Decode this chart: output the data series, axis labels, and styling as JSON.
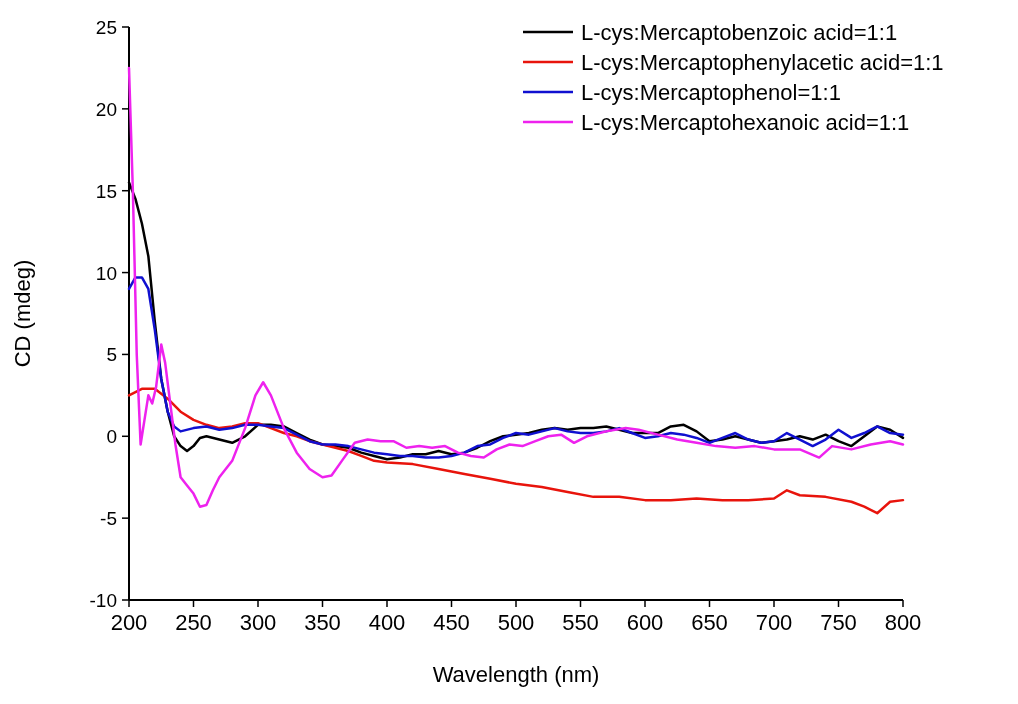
{
  "chart_data": {
    "type": "line",
    "xlabel": "Wavelength (nm)",
    "ylabel": "CD (mdeg)",
    "xlim": [
      200,
      800
    ],
    "ylim": [
      -10,
      25
    ],
    "xticks": [
      200,
      250,
      300,
      350,
      400,
      450,
      500,
      550,
      600,
      650,
      700,
      750,
      800
    ],
    "yticks": [
      -10,
      -5,
      0,
      5,
      10,
      15,
      20,
      25
    ],
    "legend": "top right",
    "grid": false,
    "line_style": "solid",
    "series": [
      {
        "name": "L-cys:Mercaptobenzoic acid=1:1",
        "color": "#000000",
        "x": [
          200,
          205,
          210,
          215,
          220,
          225,
          230,
          235,
          240,
          245,
          250,
          255,
          260,
          270,
          280,
          290,
          300,
          310,
          320,
          330,
          340,
          350,
          360,
          370,
          380,
          390,
          400,
          410,
          420,
          430,
          440,
          450,
          460,
          470,
          480,
          490,
          500,
          510,
          520,
          530,
          540,
          550,
          560,
          570,
          580,
          590,
          600,
          610,
          620,
          630,
          640,
          650,
          660,
          670,
          680,
          690,
          700,
          710,
          720,
          730,
          740,
          750,
          760,
          770,
          780,
          790,
          800
        ],
        "values": [
          15.5,
          14.5,
          13,
          11,
          7,
          3.5,
          1.5,
          0,
          -0.6,
          -0.9,
          -0.6,
          -0.1,
          0,
          -0.2,
          -0.4,
          0,
          0.7,
          0.7,
          0.6,
          0.2,
          -0.2,
          -0.5,
          -0.6,
          -0.7,
          -1,
          -1.2,
          -1.4,
          -1.3,
          -1.1,
          -1.1,
          -0.9,
          -1.1,
          -1,
          -0.7,
          -0.3,
          0,
          0.1,
          0.2,
          0.4,
          0.5,
          0.4,
          0.5,
          0.5,
          0.6,
          0.4,
          0.2,
          0.2,
          0.2,
          0.6,
          0.7,
          0.3,
          -0.3,
          -0.2,
          0,
          -0.2,
          -0.4,
          -0.3,
          -0.2,
          0,
          -0.2,
          0.1,
          -0.3,
          -0.6,
          0,
          0.6,
          0.4,
          -0.1
        ]
      },
      {
        "name": "L-cys:Mercaptophenylacetic acid=1:1",
        "color": "#e8140c",
        "x": [
          200,
          210,
          220,
          230,
          240,
          250,
          260,
          270,
          280,
          290,
          300,
          310,
          320,
          330,
          340,
          350,
          360,
          370,
          380,
          390,
          400,
          420,
          440,
          460,
          480,
          500,
          520,
          540,
          560,
          580,
          600,
          620,
          640,
          660,
          680,
          700,
          710,
          720,
          740,
          760,
          770,
          780,
          790,
          800
        ],
        "values": [
          2.5,
          2.9,
          2.9,
          2.3,
          1.5,
          1,
          0.7,
          0.5,
          0.6,
          0.8,
          0.8,
          0.5,
          0.2,
          0,
          -0.3,
          -0.5,
          -0.7,
          -0.9,
          -1.2,
          -1.5,
          -1.6,
          -1.7,
          -2,
          -2.3,
          -2.6,
          -2.9,
          -3.1,
          -3.4,
          -3.7,
          -3.7,
          -3.9,
          -3.9,
          -3.8,
          -3.9,
          -3.9,
          -3.8,
          -3.3,
          -3.6,
          -3.7,
          -4,
          -4.3,
          -4.7,
          -4,
          -3.9
        ]
      },
      {
        "name": "L-cys:Mercaptophenol=1:1",
        "color": "#1010d0",
        "x": [
          200,
          205,
          210,
          215,
          220,
          225,
          230,
          235,
          240,
          250,
          260,
          270,
          280,
          290,
          300,
          310,
          320,
          330,
          340,
          350,
          360,
          370,
          380,
          390,
          400,
          410,
          420,
          430,
          440,
          450,
          460,
          470,
          480,
          490,
          500,
          510,
          520,
          530,
          540,
          550,
          560,
          570,
          580,
          590,
          600,
          610,
          620,
          630,
          640,
          650,
          660,
          670,
          680,
          690,
          700,
          710,
          720,
          730,
          740,
          750,
          760,
          770,
          780,
          790,
          800
        ],
        "values": [
          9,
          9.7,
          9.7,
          9,
          6.5,
          3.5,
          1.5,
          0.6,
          0.3,
          0.5,
          0.6,
          0.4,
          0.5,
          0.7,
          0.7,
          0.6,
          0.5,
          0.1,
          -0.3,
          -0.5,
          -0.5,
          -0.6,
          -0.8,
          -1,
          -1.1,
          -1.2,
          -1.2,
          -1.3,
          -1.3,
          -1.2,
          -1,
          -0.6,
          -0.5,
          -0.1,
          0.2,
          0.1,
          0.3,
          0.5,
          0.3,
          0.2,
          0.2,
          0.3,
          0.5,
          0.2,
          -0.1,
          0,
          0.2,
          0.1,
          -0.1,
          -0.4,
          -0.1,
          0.2,
          -0.2,
          -0.4,
          -0.3,
          0.2,
          -0.2,
          -0.6,
          -0.2,
          0.4,
          -0.1,
          0.2,
          0.6,
          0.2,
          0.1
        ]
      },
      {
        "name": "L-cys:Mercaptohexanoic acid=1:1",
        "color": "#ee22ee",
        "x": [
          200,
          203,
          206,
          209,
          212,
          215,
          218,
          221,
          225,
          228,
          232,
          236,
          240,
          245,
          250,
          255,
          260,
          265,
          270,
          280,
          290,
          298,
          304,
          310,
          320,
          330,
          340,
          350,
          357,
          365,
          375,
          385,
          395,
          405,
          415,
          425,
          435,
          445,
          455,
          465,
          475,
          485,
          495,
          505,
          515,
          525,
          535,
          545,
          555,
          570,
          585,
          595,
          610,
          625,
          640,
          655,
          670,
          685,
          700,
          720,
          735,
          745,
          760,
          775,
          790,
          800
        ],
        "values": [
          22.5,
          15,
          5,
          -0.5,
          1,
          2.5,
          2,
          3,
          5.6,
          4.5,
          2,
          -0.5,
          -2.5,
          -3,
          -3.5,
          -4.3,
          -4.2,
          -3.3,
          -2.5,
          -1.5,
          0.5,
          2.5,
          3.3,
          2.5,
          0.5,
          -1,
          -2,
          -2.5,
          -2.4,
          -1.5,
          -0.4,
          -0.2,
          -0.3,
          -0.3,
          -0.7,
          -0.6,
          -0.7,
          -0.6,
          -1,
          -1.2,
          -1.3,
          -0.8,
          -0.5,
          -0.6,
          -0.3,
          0,
          0.1,
          -0.4,
          0,
          0.3,
          0.5,
          0.4,
          0.1,
          -0.2,
          -0.4,
          -0.6,
          -0.7,
          -0.6,
          -0.8,
          -0.8,
          -1.3,
          -0.6,
          -0.8,
          -0.5,
          -0.3,
          -0.5
        ]
      }
    ]
  }
}
